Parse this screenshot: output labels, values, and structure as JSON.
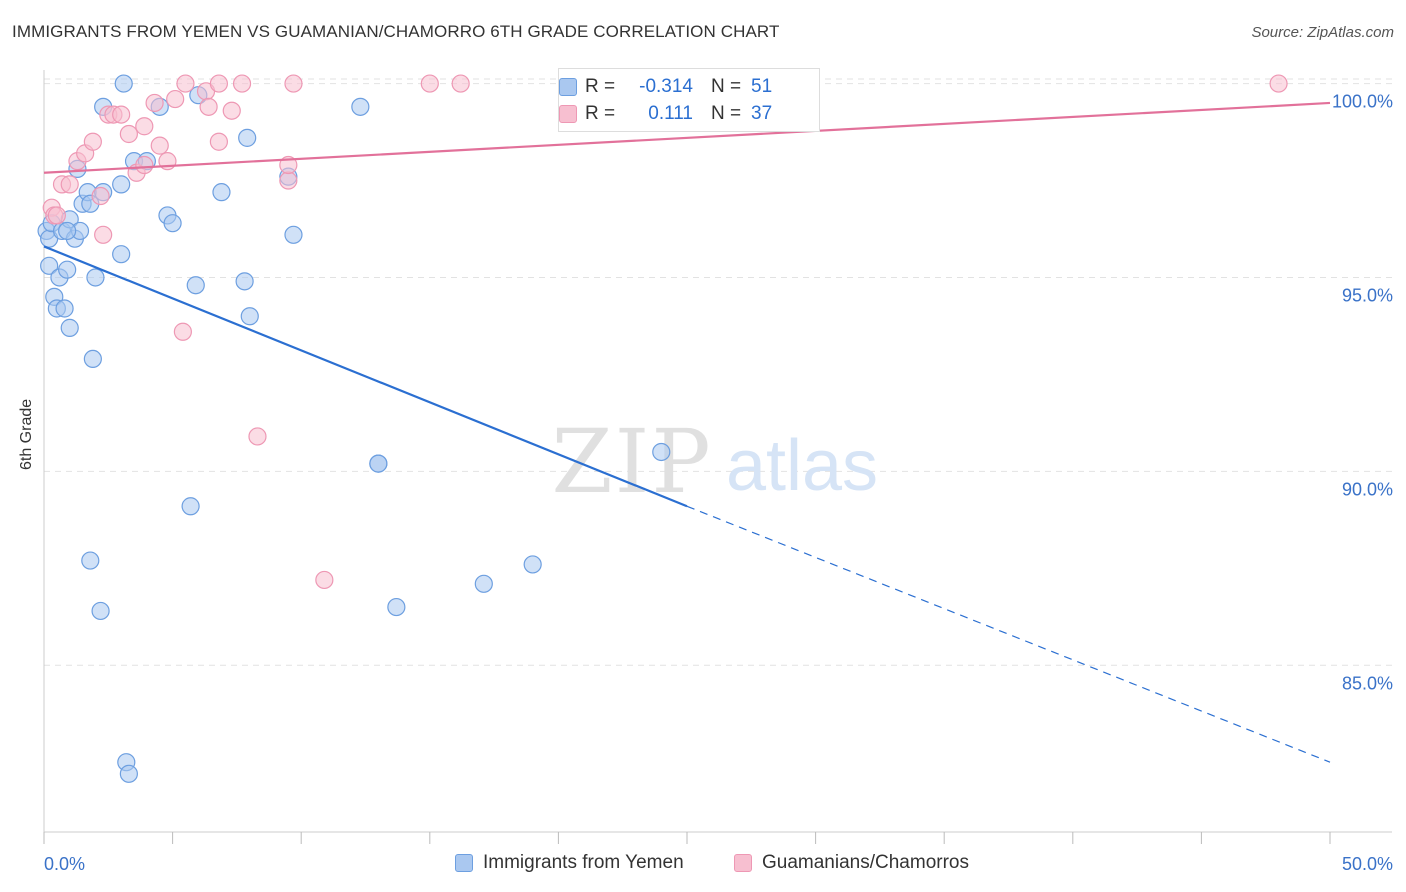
{
  "title": "IMMIGRANTS FROM YEMEN VS GUAMANIAN/CHAMORRO 6TH GRADE CORRELATION CHART",
  "source": "Source: ZipAtlas.com",
  "watermark": {
    "zip": "ZIP",
    "atlas": "atlas"
  },
  "colors": {
    "blue_fill": "#aac8f0",
    "blue_stroke": "#6d9fe0",
    "blue_line": "#2b6fd1",
    "pink_fill": "#f7bfd0",
    "pink_stroke": "#ee98b4",
    "pink_line": "#e2719a",
    "axis_text": "#3a72c8",
    "grid": "#e2e2e2"
  },
  "stats": {
    "rows": [
      {
        "r_label": "R =",
        "r_value": "-0.314",
        "n_label": "N =",
        "n_value": "51",
        "series": "blue"
      },
      {
        "r_label": "R =",
        "r_value": "0.111",
        "n_label": "N =",
        "n_value": "37",
        "series": "pink"
      }
    ]
  },
  "legend": {
    "items": [
      {
        "label": "Immigrants from Yemen",
        "series": "blue"
      },
      {
        "label": "Guamanians/Chamorros",
        "series": "pink"
      }
    ]
  },
  "chart_data": {
    "type": "scatter",
    "title": "IMMIGRANTS FROM YEMEN VS GUAMANIAN/CHAMORRO 6TH GRADE CORRELATION CHART",
    "xlabel": "",
    "ylabel": "6th Grade",
    "xlim": [
      0,
      50
    ],
    "ylim": [
      80.7,
      100.35
    ],
    "x_tick_labels": [
      "0.0%",
      "50.0%"
    ],
    "y_ticks": [
      85,
      90,
      95,
      100
    ],
    "y_tick_labels": [
      "85.0%",
      "90.0%",
      "95.0%",
      "100.0%"
    ],
    "grid": true,
    "legend_position": "bottom-center",
    "series": [
      {
        "name": "Immigrants from Yemen",
        "color": "blue",
        "points": [
          [
            0.1,
            96.2
          ],
          [
            0.2,
            96.0
          ],
          [
            0.2,
            95.3
          ],
          [
            0.3,
            96.4
          ],
          [
            0.4,
            94.5
          ],
          [
            0.5,
            94.2
          ],
          [
            0.6,
            95.0
          ],
          [
            0.7,
            96.2
          ],
          [
            0.8,
            94.2
          ],
          [
            0.9,
            95.2
          ],
          [
            1.0,
            96.5
          ],
          [
            1.0,
            93.7
          ],
          [
            1.2,
            96.0
          ],
          [
            1.3,
            97.8
          ],
          [
            1.4,
            96.2
          ],
          [
            1.5,
            96.9
          ],
          [
            1.7,
            97.2
          ],
          [
            1.8,
            96.9
          ],
          [
            1.9,
            92.9
          ],
          [
            2.0,
            95.0
          ],
          [
            2.3,
            99.4
          ],
          [
            2.3,
            97.2
          ],
          [
            3.0,
            95.6
          ],
          [
            3.0,
            97.4
          ],
          [
            3.1,
            100.0
          ],
          [
            3.5,
            98.0
          ],
          [
            4.0,
            98.0
          ],
          [
            4.5,
            99.4
          ],
          [
            4.8,
            96.6
          ],
          [
            5.0,
            96.4
          ],
          [
            5.9,
            94.8
          ],
          [
            6.0,
            99.7
          ],
          [
            6.9,
            97.2
          ],
          [
            7.8,
            94.9
          ],
          [
            7.9,
            98.6
          ],
          [
            8.0,
            94.0
          ],
          [
            9.5,
            97.6
          ],
          [
            9.7,
            96.1
          ],
          [
            12.3,
            99.4
          ],
          [
            13.0,
            90.2
          ],
          [
            1.8,
            87.7
          ],
          [
            2.2,
            86.4
          ],
          [
            5.7,
            89.1
          ],
          [
            3.2,
            82.5
          ],
          [
            3.3,
            82.2
          ],
          [
            13.0,
            90.2
          ],
          [
            13.7,
            86.5
          ],
          [
            17.1,
            87.1
          ],
          [
            19.0,
            87.6
          ],
          [
            24.0,
            90.5
          ],
          [
            0.9,
            96.2
          ]
        ],
        "trend": {
          "x": [
            0,
            25
          ],
          "y": [
            95.8,
            89.1
          ]
        },
        "trend_extension": {
          "x": [
            25,
            50
          ],
          "y": [
            89.1,
            82.5
          ]
        }
      },
      {
        "name": "Guamanians/Chamorros",
        "color": "pink",
        "points": [
          [
            0.3,
            96.8
          ],
          [
            0.4,
            96.6
          ],
          [
            0.7,
            97.4
          ],
          [
            1.0,
            97.4
          ],
          [
            1.3,
            98.0
          ],
          [
            1.6,
            98.2
          ],
          [
            1.9,
            98.5
          ],
          [
            2.2,
            97.1
          ],
          [
            2.3,
            96.1
          ],
          [
            2.5,
            99.2
          ],
          [
            2.7,
            99.2
          ],
          [
            3.0,
            99.2
          ],
          [
            3.3,
            98.7
          ],
          [
            3.6,
            97.7
          ],
          [
            3.9,
            97.9
          ],
          [
            3.9,
            98.9
          ],
          [
            4.3,
            99.5
          ],
          [
            4.5,
            98.4
          ],
          [
            4.8,
            98.0
          ],
          [
            5.1,
            99.6
          ],
          [
            5.4,
            93.6
          ],
          [
            5.5,
            100.0
          ],
          [
            6.3,
            99.8
          ],
          [
            6.4,
            99.4
          ],
          [
            6.8,
            100.0
          ],
          [
            6.8,
            98.5
          ],
          [
            7.3,
            99.3
          ],
          [
            7.7,
            100.0
          ],
          [
            8.3,
            90.9
          ],
          [
            9.5,
            97.5
          ],
          [
            9.5,
            97.9
          ],
          [
            9.7,
            100.0
          ],
          [
            10.9,
            87.2
          ],
          [
            15.0,
            100.0
          ],
          [
            16.2,
            100.0
          ],
          [
            48.0,
            100.0
          ],
          [
            0.5,
            96.6
          ]
        ],
        "trend": {
          "x": [
            0,
            50
          ],
          "y": [
            97.7,
            99.5
          ]
        }
      }
    ]
  }
}
